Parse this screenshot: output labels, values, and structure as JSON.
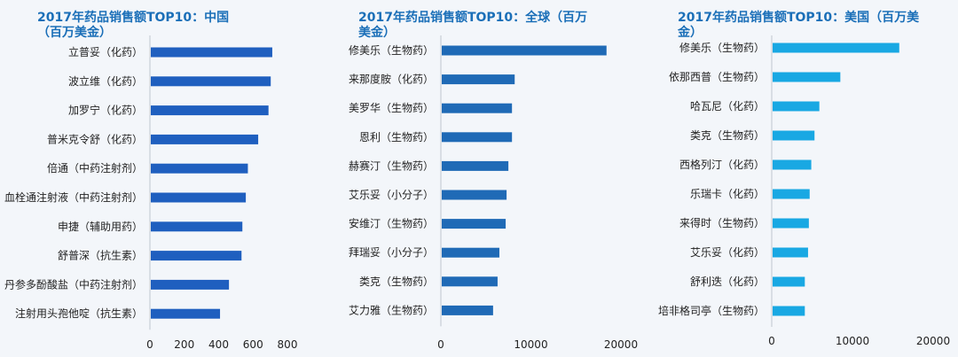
{
  "chart_data": [
    {
      "type": "bar",
      "orientation": "horizontal",
      "title": "2017年药品销售额TOP10：中国（百万美金）",
      "categories": [
        "立普妥（化药）",
        "波立维（化药）",
        "加罗宁（化药）",
        "普米克令舒（化药）",
        "倍通（中药注射剂）",
        "血栓通注射液（中药注射剂）",
        "申捷（辅助用药）",
        "舒普深（抗生素）",
        "丹参多酚酸盐（中药注射剂）",
        "注射用头孢他啶（抗生素）"
      ],
      "values": [
        712,
        703,
        690,
        630,
        570,
        558,
        538,
        533,
        460,
        408
      ],
      "xlim": [
        0,
        800
      ],
      "xticks": [
        0,
        200,
        400,
        600,
        800
      ],
      "color": "#1f5fbf"
    },
    {
      "type": "bar",
      "orientation": "horizontal",
      "title": "2017年药品销售额TOP10：全球（百万美金）",
      "categories": [
        "修美乐（生物药）",
        "来那度胺（化药）",
        "美罗华（生物药）",
        "恩利（生物药）",
        "赫赛汀（生物药）",
        "艾乐妥（小分子）",
        "安维汀（生物药）",
        "拜瑞妥（小分子）",
        "类克（生物药）",
        "艾力雅（生物药）"
      ],
      "values": [
        18400,
        8200,
        7900,
        7900,
        7500,
        7300,
        7200,
        6500,
        6300,
        5800
      ],
      "xlim": [
        0,
        20000
      ],
      "xticks": [
        0,
        10000,
        20000
      ],
      "color": "#1f6ab6"
    },
    {
      "type": "bar",
      "orientation": "horizontal",
      "title": "2017年药品销售额TOP10：美国（百万美金）",
      "categories": [
        "修美乐（生物药）",
        "依那西普（生物药）",
        "哈瓦尼（化药）",
        "类克（生物药）",
        "西格列汀（化药）",
        "乐瑞卡（化药）",
        "来得时（生物药）",
        "艾乐妥（化药）",
        "舒利迭（化药）",
        "培非格司亭（生物药）"
      ],
      "values": [
        15800,
        8500,
        5900,
        5300,
        4900,
        4700,
        4600,
        4500,
        4100,
        4100
      ],
      "xlim": [
        0,
        20000
      ],
      "xticks": [
        0,
        10000,
        20000
      ],
      "color": "#19a8e3"
    }
  ]
}
